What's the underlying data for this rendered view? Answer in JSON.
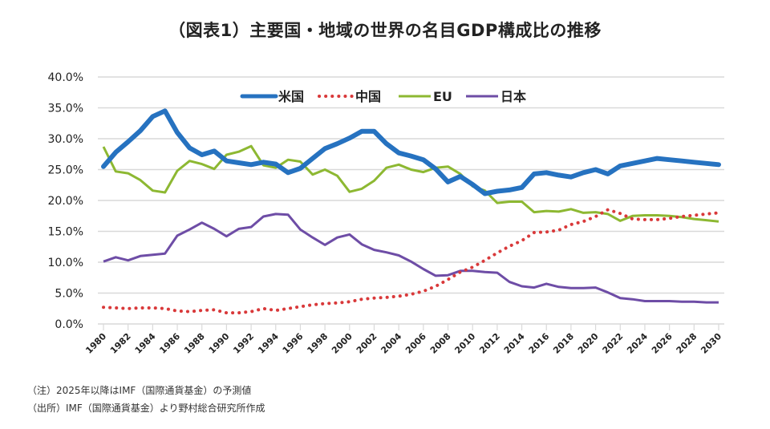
{
  "chart_data": {
    "type": "line",
    "title": "（図表1）主要国・地域の世界の名目GDP構成比の推移",
    "xlabel": "",
    "ylabel": "",
    "ylim": [
      0,
      40
    ],
    "y_ticks": [
      "0.0%",
      "5.0%",
      "10.0%",
      "15.0%",
      "20.0%",
      "25.0%",
      "30.0%",
      "35.0%",
      "40.0%"
    ],
    "x_ticks": [
      "1980",
      "1982",
      "1984",
      "1986",
      "1988",
      "1990",
      "1992",
      "1994",
      "1996",
      "1998",
      "2000",
      "2002",
      "2004",
      "2006",
      "2008",
      "2010",
      "2012",
      "2014",
      "2016",
      "2018",
      "2020",
      "2022",
      "2024",
      "2026",
      "2028",
      "2030"
    ],
    "grid": true,
    "legend_position": "top-center",
    "x": [
      1980,
      1981,
      1982,
      1983,
      1984,
      1985,
      1986,
      1987,
      1988,
      1989,
      1990,
      1991,
      1992,
      1993,
      1994,
      1995,
      1996,
      1997,
      1998,
      1999,
      2000,
      2001,
      2002,
      2003,
      2004,
      2005,
      2006,
      2007,
      2008,
      2009,
      2010,
      2011,
      2012,
      2013,
      2014,
      2015,
      2016,
      2017,
      2018,
      2019,
      2020,
      2021,
      2022,
      2023,
      2024,
      2025,
      2026,
      2027,
      2028,
      2029,
      2030
    ],
    "series": [
      {
        "name": "米国",
        "color": "#2672c0",
        "style": "solid-thick",
        "values": [
          25.5,
          27.8,
          29.5,
          31.3,
          33.6,
          34.5,
          31.0,
          28.5,
          27.4,
          28.0,
          26.4,
          26.1,
          25.8,
          26.2,
          25.9,
          24.5,
          25.2,
          26.8,
          28.4,
          29.2,
          30.1,
          31.2,
          31.2,
          29.2,
          27.7,
          27.2,
          26.6,
          25.1,
          23.0,
          23.9,
          22.6,
          21.1,
          21.5,
          21.7,
          22.1,
          24.3,
          24.5,
          24.1,
          23.8,
          24.5,
          25.0,
          24.3,
          25.6,
          26.0,
          26.4,
          26.8,
          26.6,
          26.4,
          26.2,
          26.0,
          25.8
        ]
      },
      {
        "name": "中国",
        "color": "#d9393a",
        "style": "dotted",
        "values": [
          2.7,
          2.6,
          2.5,
          2.6,
          2.6,
          2.5,
          2.1,
          2.0,
          2.2,
          2.3,
          1.8,
          1.8,
          2.0,
          2.5,
          2.2,
          2.5,
          2.8,
          3.1,
          3.3,
          3.4,
          3.6,
          4.0,
          4.2,
          4.3,
          4.5,
          4.8,
          5.3,
          6.1,
          7.2,
          8.4,
          9.2,
          10.3,
          11.5,
          12.6,
          13.5,
          14.8,
          14.9,
          15.2,
          16.1,
          16.6,
          17.4,
          18.5,
          17.9,
          17.0,
          16.9,
          16.9,
          17.1,
          17.4,
          17.6,
          17.8,
          18.0
        ]
      },
      {
        "name": "EU",
        "color": "#8db832",
        "style": "solid",
        "values": [
          28.7,
          24.7,
          24.4,
          23.3,
          21.6,
          21.3,
          24.8,
          26.4,
          25.9,
          25.1,
          27.4,
          27.9,
          28.8,
          25.7,
          25.3,
          26.6,
          26.3,
          24.2,
          25.0,
          24.0,
          21.4,
          21.9,
          23.2,
          25.3,
          25.8,
          25.0,
          24.6,
          25.3,
          25.5,
          24.3,
          22.3,
          21.6,
          19.6,
          19.8,
          19.8,
          18.1,
          18.3,
          18.2,
          18.6,
          18.0,
          18.1,
          17.8,
          16.7,
          17.5,
          17.6,
          17.6,
          17.5,
          17.3,
          17.0,
          16.8,
          16.6
        ]
      },
      {
        "name": "日本",
        "color": "#6e4da6",
        "style": "solid",
        "values": [
          10.1,
          10.8,
          10.3,
          11.0,
          11.2,
          11.4,
          14.3,
          15.3,
          16.4,
          15.4,
          14.2,
          15.4,
          15.7,
          17.4,
          17.8,
          17.7,
          15.3,
          14.0,
          12.8,
          14.0,
          14.5,
          12.9,
          12.0,
          11.6,
          11.1,
          10.1,
          8.9,
          7.8,
          7.9,
          8.6,
          8.6,
          8.4,
          8.3,
          6.8,
          6.1,
          5.9,
          6.5,
          6.0,
          5.8,
          5.8,
          5.9,
          5.1,
          4.2,
          4.0,
          3.7,
          3.7,
          3.7,
          3.6,
          3.6,
          3.5,
          3.5
        ]
      }
    ]
  },
  "notes": [
    "（注）2025年以降はIMF（国際通貨基金）の予測値",
    "（出所）IMF（国際通貨基金）より野村総合研究所作成"
  ]
}
